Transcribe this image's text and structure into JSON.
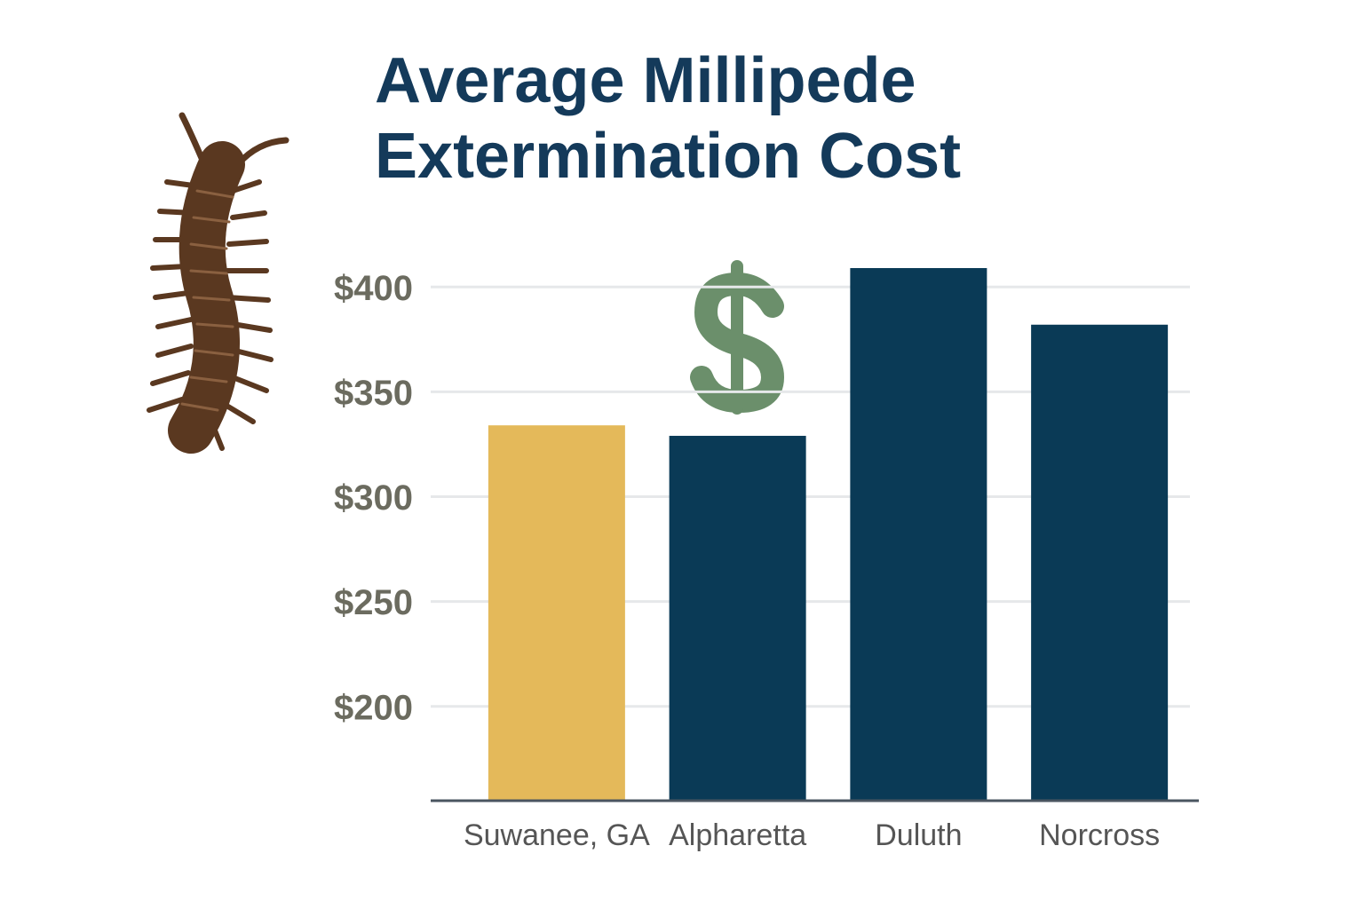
{
  "chart_data": {
    "type": "bar",
    "title": [
      "Average Millipede",
      "Extermination Cost"
    ],
    "categories": [
      "Suwanee, GA",
      "Alpharetta",
      "Duluth",
      "Norcross"
    ],
    "values": [
      334,
      329,
      409,
      382
    ],
    "colors": [
      "#e4b95a",
      "#0a3a56",
      "#0a3a56",
      "#0a3a56"
    ],
    "ylim": [
      155,
      420
    ],
    "yticks": [
      {
        "value": 200,
        "label": "$200"
      },
      {
        "value": 250,
        "label": "$250"
      },
      {
        "value": 300,
        "label": "$300"
      },
      {
        "value": 350,
        "label": "$350"
      },
      {
        "value": 400,
        "label": "$400"
      }
    ],
    "grid": true
  }
}
